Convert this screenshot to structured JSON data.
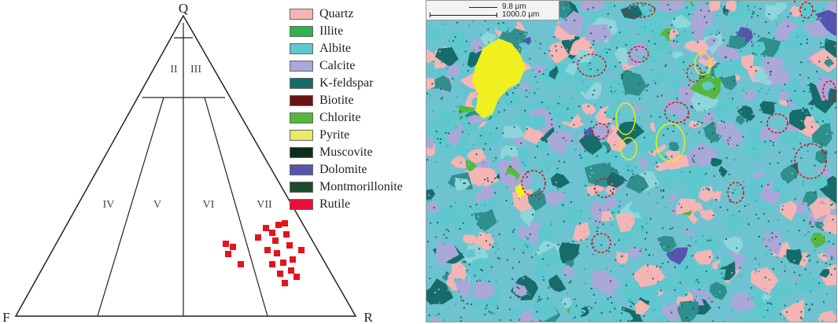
{
  "ternary": {
    "vertices": {
      "top": "Q",
      "left": "F",
      "right": "R"
    },
    "fields": [
      "II",
      "III",
      "IV",
      "V",
      "VI",
      "VII"
    ]
  },
  "legend": [
    {
      "label": "Quartz",
      "color": "#f5b5b5"
    },
    {
      "label": "Illite",
      "color": "#2fb44c"
    },
    {
      "label": "Albite",
      "color": "#5fc8cf"
    },
    {
      "label": "Calcite",
      "color": "#aaa8d8"
    },
    {
      "label": "K-feldspar",
      "color": "#166c6a"
    },
    {
      "label": "Biotite",
      "color": "#6b1414"
    },
    {
      "label": "Chlorite",
      "color": "#55b83a"
    },
    {
      "label": "Pyrite",
      "color": "#e9ea6a"
    },
    {
      "label": "Muscovite",
      "color": "#0f2e1a"
    },
    {
      "label": "Dolomite",
      "color": "#5555b0"
    },
    {
      "label": "Montmorillonite",
      "color": "#1c4a2a"
    },
    {
      "label": "Rutile",
      "color": "#e8103a"
    }
  ],
  "scalebar": {
    "top_label": "9.8 μm",
    "bottom_label": "1000.0 μm"
  },
  "colors": {
    "marker": "#e2141c",
    "line": "#222222"
  }
}
